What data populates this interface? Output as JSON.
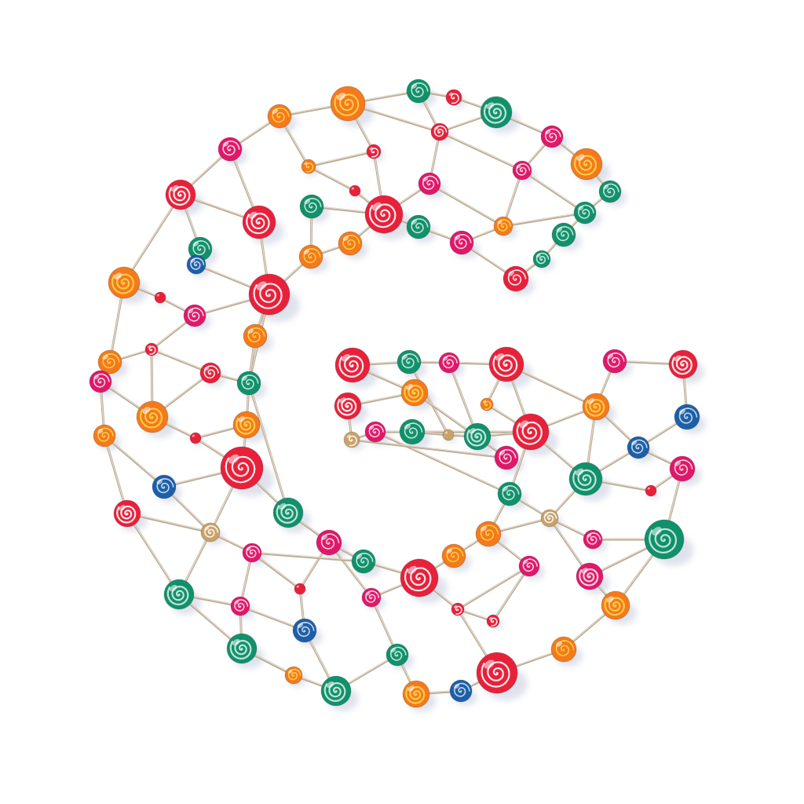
{
  "scene": {
    "subject": "letter-g-lollipop-network",
    "background_color": "#ffffff",
    "stick_color": "#b9ab96",
    "stick_highlight": "#e7dccb",
    "shadow_color": "#d8dce8",
    "palette": {
      "red": "#e8213b",
      "orange": "#f47a1c",
      "green": "#11916b",
      "blue": "#1d5fa8",
      "magenta": "#e0186a",
      "gold": "#c9a26a"
    },
    "swirl_highlight_colors": [
      "#ffffff",
      "#ffd34d",
      "#ffe3ea"
    ]
  }
}
